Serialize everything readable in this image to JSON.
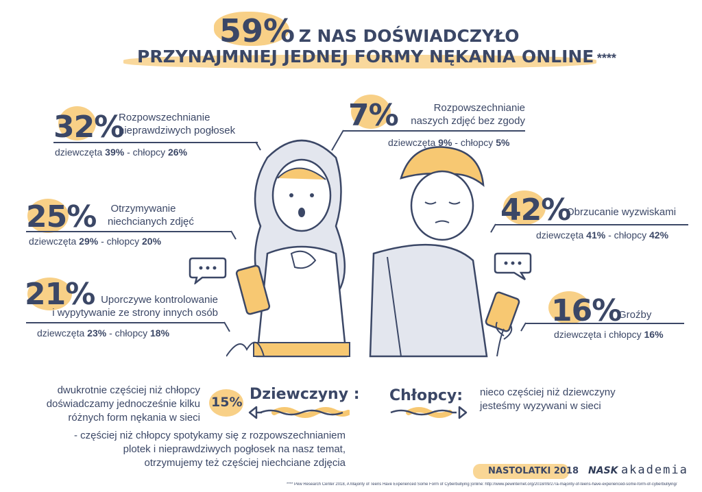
{
  "title": {
    "percent": "59%",
    "line1_rest": "Z NAS DOŚWIADCZYŁO",
    "line2": "PRZYNAJMNIEJ JEDNEJ FORMY NĘKANIA ONLINE",
    "footnote_mark": "****"
  },
  "stats": [
    {
      "percent": "32%",
      "label_l1": "Rozpowszechnianie",
      "label_l2": "nieprawdziwych pogłosek",
      "girls_label": "dziewczęta",
      "girls": "39%",
      "sep": "- chłopcy",
      "boys": "26%"
    },
    {
      "percent": "25%",
      "label_l1": "Otrzymywanie",
      "label_l2": "niechcianych zdjęć",
      "girls_label": "dziewczęta",
      "girls": "29%",
      "sep": "- chłopcy",
      "boys": "20%"
    },
    {
      "percent": "21%",
      "label_l1": "Uporczywe kontrolowanie",
      "label_l2": "i wypytywanie ze strony innych osób",
      "girls_label": "dziewczęta",
      "girls": "23%",
      "sep": "- chłopcy",
      "boys": "18%"
    },
    {
      "percent": "7%",
      "label_l1": "Rozpowszechnianie",
      "label_l2": "naszych zdjęć bez zgody",
      "girls_label": "dziewczęta",
      "girls": "9%",
      "sep": "- chłopcy",
      "boys": "5%"
    },
    {
      "percent": "42%",
      "label_l1": "Obrzucanie wyzwiskami",
      "label_l2": "",
      "girls_label": "dziewczęta",
      "girls": "41%",
      "sep": "- chłopcy",
      "boys": "42%"
    },
    {
      "percent": "16%",
      "label_l1": "Groźby",
      "label_l2": "",
      "girls_label": "dziewczęta i chłopcy",
      "girls": "",
      "sep": "",
      "boys": "16%"
    }
  ],
  "girls_section": {
    "heading": "Dziewczyny :",
    "badge": "15%",
    "note_l1": "dwukrotnie częściej niż chłopcy",
    "note_l2": "doświadczamy jednocześnie kilku",
    "note_l3": "różnych form nękania w sieci",
    "extra_l1": "- częściej niż chłopcy spotykamy się z rozpowszechnianiem",
    "extra_l2": "plotek i nieprawdziwych pogłosek na nasz temat,",
    "extra_l3": "otrzymujemy też częściej niechciane zdjęcia"
  },
  "boys_section": {
    "heading": "Chłopcy:",
    "note_l1": "nieco częściej niż dziewczyny",
    "note_l2": "jesteśmy wyzywani w sieci"
  },
  "footer": {
    "tag": "NASTOLATKI 2018",
    "logo_nask": "NASK",
    "logo_akademia": "akademia",
    "source": "**** Pew Research Center 2018, A Majority of Teens Have Experienced Some Form of Cyberbullying [online: http://www.pewinternet.org/2018/09/27/a-majority-of-teens-have-experienced-some-form-of-cyberbullying/"
  },
  "colors": {
    "accent": "#f7c872",
    "ink": "#3b4766",
    "gray": "#e3e6ee"
  }
}
